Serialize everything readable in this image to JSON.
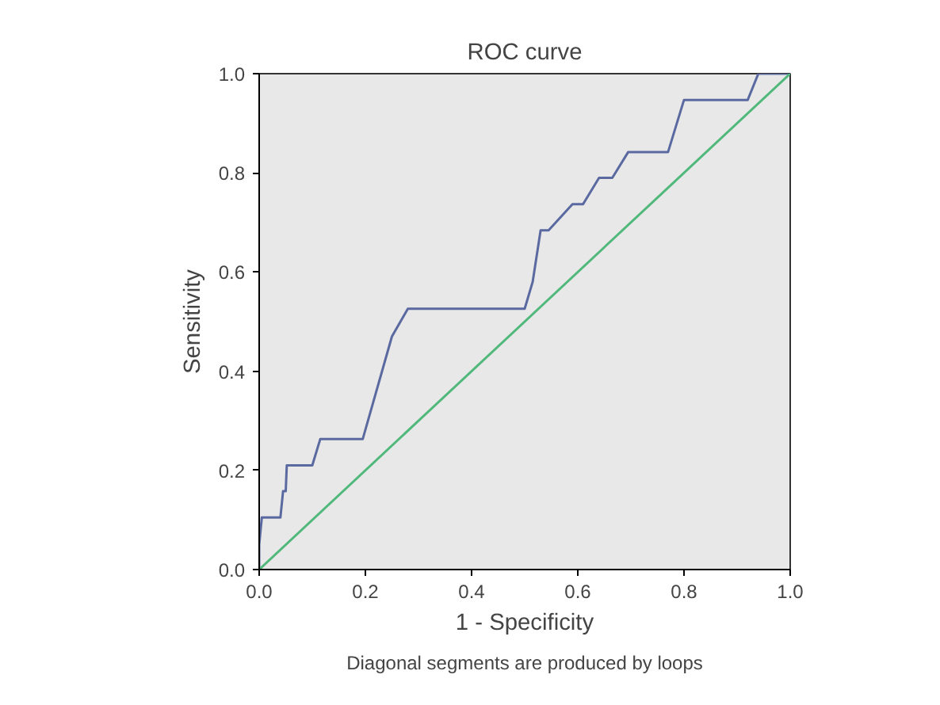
{
  "chart_data": {
    "type": "line",
    "title": "ROC curve",
    "xlabel": "1 - Specificity",
    "ylabel": "Sensitivity",
    "xlim": [
      0,
      1
    ],
    "ylim": [
      0,
      1
    ],
    "xticks": [
      {
        "value": 0,
        "label": "0.0"
      },
      0.2,
      0.4,
      0.6,
      0.8,
      {
        "value": 1,
        "label": "1.0"
      }
    ],
    "yticks": [
      {
        "value": 0,
        "label": "0.0"
      },
      0.2,
      0.4,
      0.6,
      0.8,
      {
        "value": 1,
        "label": "1.0"
      }
    ],
    "grid": false,
    "series": [
      {
        "color": "#5a6aa0",
        "x": [
          0,
          0,
          0.005,
          0.04,
          0.045,
          0.05,
          0.052,
          0.1,
          0.115,
          0.195,
          0.25,
          0.28,
          0.5,
          0.515,
          0.53,
          0.545,
          0.59,
          0.61,
          0.64,
          0.665,
          0.695,
          0.77,
          0.8,
          0.92,
          0.94,
          1
        ],
        "values": [
          0,
          0.05,
          0.105,
          0.105,
          0.158,
          0.158,
          0.21,
          0.21,
          0.263,
          0.263,
          0.47,
          0.526,
          0.526,
          0.58,
          0.684,
          0.684,
          0.737,
          0.737,
          0.79,
          0.79,
          0.842,
          0.842,
          0.947,
          0.947,
          1,
          1
        ]
      },
      {
        "color": "#4fb87a",
        "x": [
          0,
          1
        ],
        "values": [
          0,
          1
        ]
      }
    ],
    "annotations": [
      "Diagonal segments are produced by loops"
    ]
  }
}
